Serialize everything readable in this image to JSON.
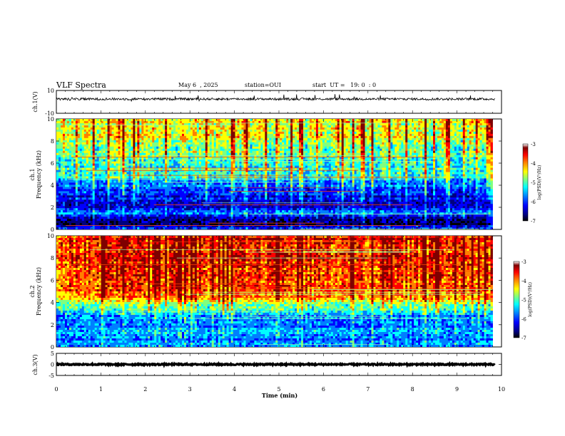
{
  "header": {
    "title": "VLF Spectra",
    "date": "May 6  , 2025",
    "station": "station=OUI",
    "start_ut": "start  UT =   19: 0  : 0"
  },
  "colors": {
    "spectrogram_palette": [
      "#000000",
      "#00007f",
      "#0000ff",
      "#007fff",
      "#00ffff",
      "#7fff7f",
      "#ffff00",
      "#ff7f00",
      "#ff0000",
      "#7f0000",
      "#ffffff"
    ]
  },
  "chart_data": [
    {
      "type": "line",
      "name": "waveform-ch1",
      "ylabel": "ch.1(V)",
      "ylim": [
        -10,
        10
      ],
      "yticks": [
        "10",
        "-10"
      ],
      "xlim": [
        0,
        10
      ],
      "baseline": 2.5,
      "noise_amplitude": 1.0
    },
    {
      "type": "heatmap",
      "name": "spectrogram-ch1",
      "ylabel": "ch.1\nFrequency (kHz)",
      "ylim": [
        0,
        10
      ],
      "yticks": [
        "0",
        "2",
        "4",
        "6",
        "8",
        "10"
      ],
      "xlim": [
        0,
        9.8
      ],
      "level_profile_kHz": [
        0,
        0.5,
        1,
        1.5,
        2,
        2.5,
        3,
        3.5,
        4,
        4.5,
        5,
        6,
        7,
        8,
        9,
        10
      ],
      "level_profile_value": [
        -5.8,
        -6.6,
        -6.3,
        -5.5,
        -6.3,
        -6.1,
        -6.0,
        -5.9,
        -5.6,
        -5.2,
        -4.9,
        -4.9,
        -4.7,
        -4.4,
        -4.3,
        -4.3
      ],
      "colorbar": {
        "label": "log(PSD)(V²/Hz)",
        "range": [
          -7,
          -3
        ],
        "ticks": [
          "-3",
          "-4",
          "-5",
          "-6",
          "-7"
        ]
      }
    },
    {
      "type": "heatmap",
      "name": "spectrogram-ch2",
      "ylabel": "ch.2\nFrequency (kHz)",
      "ylim": [
        0,
        10
      ],
      "yticks": [
        "0",
        "2",
        "4",
        "6",
        "8",
        "10"
      ],
      "xlim": [
        0,
        9.8
      ],
      "level_profile_kHz": [
        0,
        0.5,
        1,
        1.5,
        2,
        2.5,
        3,
        3.5,
        4,
        4.5,
        5,
        6,
        7,
        8,
        9,
        10
      ],
      "level_profile_value": [
        -5.3,
        -5.5,
        -5.6,
        -5.3,
        -5.6,
        -5.5,
        -5.2,
        -4.8,
        -4.4,
        -3.9,
        -3.7,
        -3.6,
        -3.5,
        -3.4,
        -3.4,
        -3.4
      ],
      "colorbar": {
        "label": "log(PSD)(V²/Hz)",
        "range": [
          -7,
          -3
        ],
        "ticks": [
          "-3",
          "-4",
          "-5",
          "-6",
          "-7"
        ]
      }
    },
    {
      "type": "line",
      "name": "waveform-ch3",
      "ylabel": "ch.3(V)",
      "ylim": [
        -5,
        5
      ],
      "yticks": [
        "5",
        "0",
        "-5"
      ],
      "xlim": [
        0,
        10
      ],
      "baseline": 0,
      "noise_amplitude": 0.3
    }
  ],
  "xaxis": {
    "label": "Time (min)",
    "ticks": [
      "0",
      "1",
      "2",
      "3",
      "4",
      "5",
      "6",
      "7",
      "8",
      "9",
      "10"
    ],
    "range": [
      0,
      10
    ]
  }
}
